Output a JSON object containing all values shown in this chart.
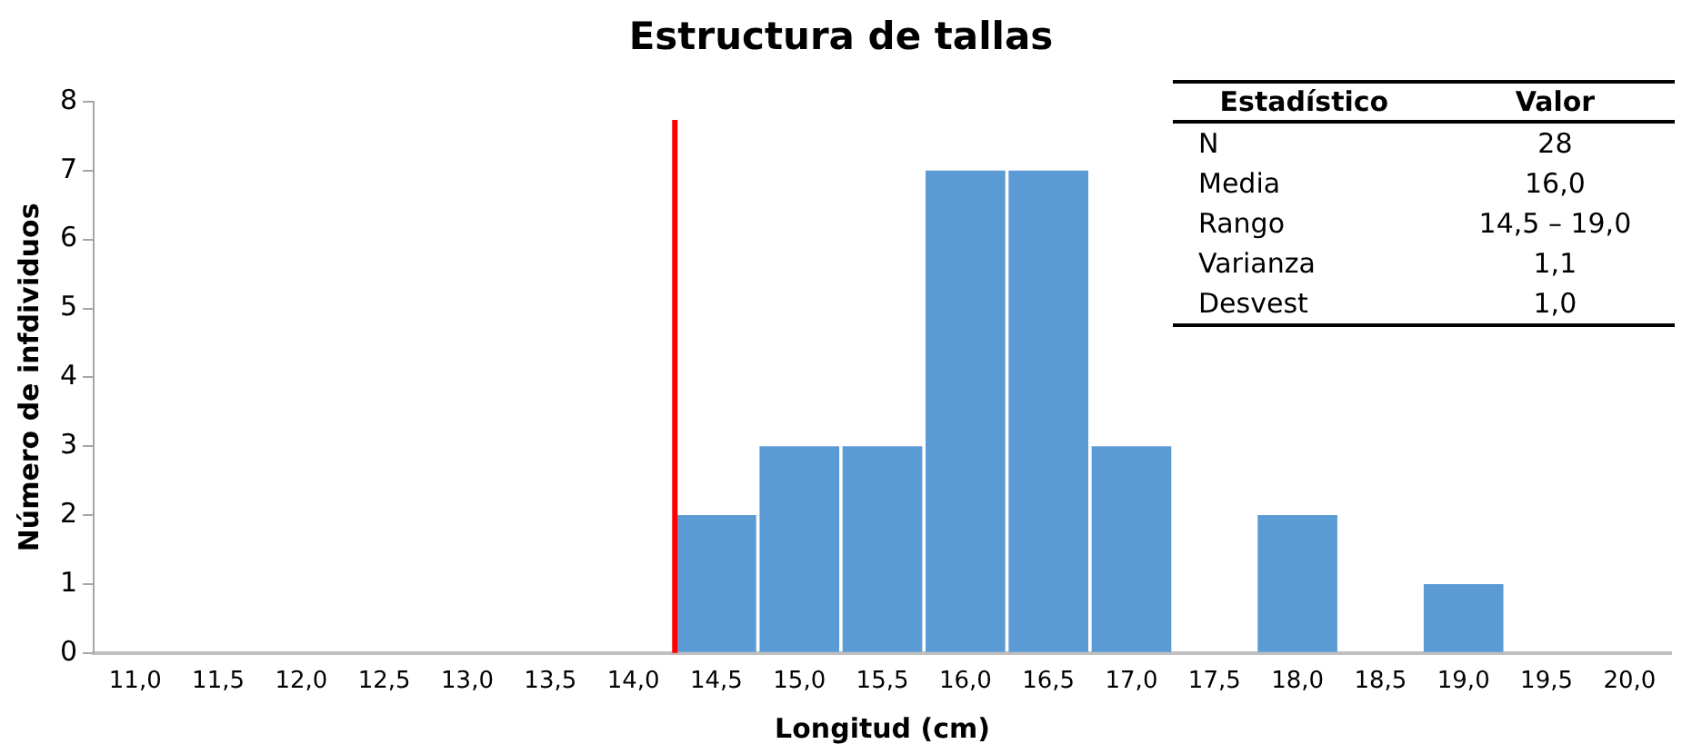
{
  "chart_data": {
    "type": "bar",
    "title": "Estructura de tallas",
    "xlabel": "Longitud (cm)",
    "ylabel": "Número de infdividuos",
    "x": [
      11,
      11.5,
      12,
      12.5,
      13,
      13.5,
      14,
      14.5,
      15,
      15.5,
      16,
      16.5,
      17,
      17.5,
      18,
      18.5,
      19,
      19.5,
      20
    ],
    "values": [
      0,
      0,
      0,
      0,
      0,
      0,
      0,
      2,
      3,
      3,
      7,
      7,
      3,
      0,
      2,
      0,
      1,
      0,
      0
    ],
    "color": "#5b9bd5",
    "xlim": [
      10.75,
      20.25
    ],
    "xticks": [
      {
        "value": 11,
        "label": "11,0"
      },
      {
        "value": 11.5,
        "label": "11,5"
      },
      {
        "value": 12,
        "label": "12,0"
      },
      {
        "value": 12.5,
        "label": "12,5"
      },
      {
        "value": 13,
        "label": "13,0"
      },
      {
        "value": 13.5,
        "label": "13,5"
      },
      {
        "value": 14,
        "label": "14,0"
      },
      {
        "value": 14.5,
        "label": "14,5"
      },
      {
        "value": 15,
        "label": "15,0"
      },
      {
        "value": 15.5,
        "label": "15,5"
      },
      {
        "value": 16,
        "label": "16,0"
      },
      {
        "value": 16.5,
        "label": "16,5"
      },
      {
        "value": 17,
        "label": "17,0"
      },
      {
        "value": 17.5,
        "label": "17,5"
      },
      {
        "value": 18,
        "label": "18,0"
      },
      {
        "value": 18.5,
        "label": "18,5"
      },
      {
        "value": 19,
        "label": "19,0"
      },
      {
        "value": 19.5,
        "label": "19,5"
      },
      {
        "value": 20,
        "label": "20,0"
      }
    ],
    "ylim": [
      0,
      8
    ],
    "yticks": [
      0,
      1,
      2,
      3,
      4,
      5,
      6,
      7,
      8
    ],
    "grid": false,
    "legend": false,
    "ref_lines": [
      {
        "axis": "x",
        "value": 14.25,
        "color": "#ff0000"
      }
    ],
    "annotations": [
      "Estadístico",
      "Valor",
      "N",
      "28",
      "Media",
      "16,0",
      "Rango",
      "14,5 – 19,0",
      "Varianza",
      "1,1",
      "Desvest",
      "1,0"
    ]
  }
}
